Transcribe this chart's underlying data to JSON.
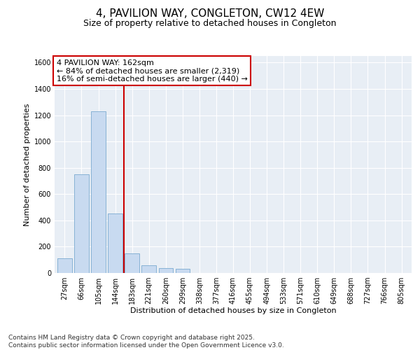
{
  "title1": "4, PAVILION WAY, CONGLETON, CW12 4EW",
  "title2": "Size of property relative to detached houses in Congleton",
  "xlabel": "Distribution of detached houses by size in Congleton",
  "ylabel": "Number of detached properties",
  "categories": [
    "27sqm",
    "66sqm",
    "105sqm",
    "144sqm",
    "183sqm",
    "221sqm",
    "260sqm",
    "299sqm",
    "338sqm",
    "377sqm",
    "416sqm",
    "455sqm",
    "494sqm",
    "533sqm",
    "571sqm",
    "610sqm",
    "649sqm",
    "688sqm",
    "727sqm",
    "766sqm",
    "805sqm"
  ],
  "values": [
    110,
    750,
    1230,
    450,
    148,
    60,
    35,
    30,
    0,
    0,
    0,
    0,
    0,
    0,
    0,
    0,
    0,
    0,
    0,
    0,
    0
  ],
  "bar_color": "#c8daf0",
  "bar_edge_color": "#7aaad0",
  "vline_color": "#cc0000",
  "annotation_text": "4 PAVILION WAY: 162sqm\n← 84% of detached houses are smaller (2,319)\n16% of semi-detached houses are larger (440) →",
  "annotation_box_color": "#ffffff",
  "annotation_box_edge": "#cc0000",
  "ylim": [
    0,
    1650
  ],
  "yticks": [
    0,
    200,
    400,
    600,
    800,
    1000,
    1200,
    1400,
    1600
  ],
  "background_color": "#e8eef5",
  "footer_text": "Contains HM Land Registry data © Crown copyright and database right 2025.\nContains public sector information licensed under the Open Government Licence v3.0.",
  "title1_fontsize": 11,
  "title2_fontsize": 9,
  "axis_label_fontsize": 8,
  "tick_fontsize": 7,
  "annotation_fontsize": 8,
  "footer_fontsize": 6.5
}
